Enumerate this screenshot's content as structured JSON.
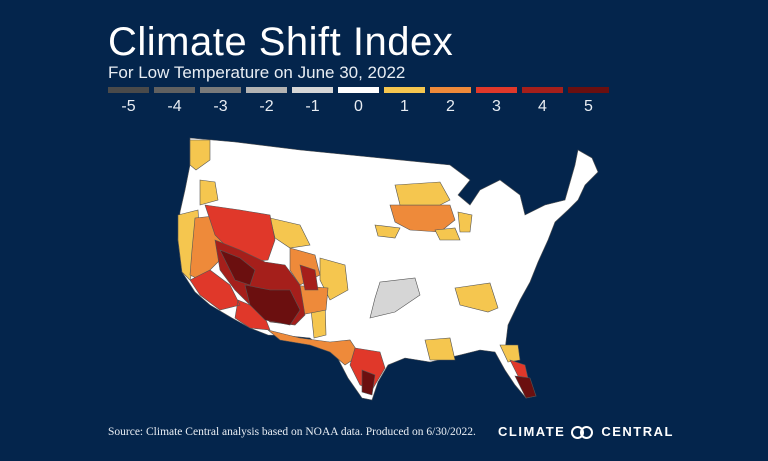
{
  "title": "Climate Shift Index",
  "subtitle": "For Low Temperature on June 30, 2022",
  "legend": [
    {
      "label": "-5",
      "color": "#4a4a4a"
    },
    {
      "label": "-4",
      "color": "#606060"
    },
    {
      "label": "-3",
      "color": "#7a7a7a"
    },
    {
      "label": "-2",
      "color": "#b3b3b3"
    },
    {
      "label": "-1",
      "color": "#d6d6d6"
    },
    {
      "label": "0",
      "color": "#ffffff"
    },
    {
      "label": "1",
      "color": "#f5c64f"
    },
    {
      "label": "2",
      "color": "#ee8a3a"
    },
    {
      "label": "3",
      "color": "#e0382a"
    },
    {
      "label": "4",
      "color": "#a51f1b"
    },
    {
      "label": "5",
      "color": "#6b0f0f"
    }
  ],
  "map": {
    "region": "Contiguous United States, by climate division"
  },
  "footer": {
    "source": "Source: Climate Central analysis based on NOAA data. Produced on 6/30/2022.",
    "brand_left": "CLIMATE",
    "brand_right": "CENTRAL"
  }
}
